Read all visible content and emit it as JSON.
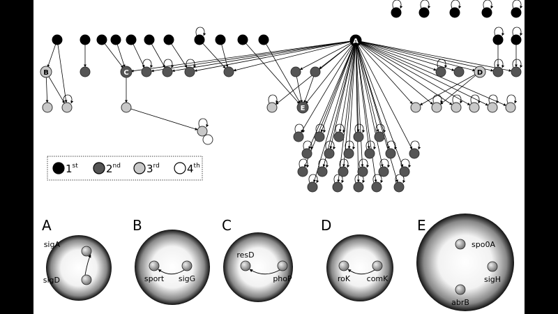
{
  "network": {
    "hub_labels": [
      "A",
      "B",
      "C",
      "D",
      "E"
    ]
  },
  "legend": {
    "items": [
      {
        "num": "1",
        "sup": "st",
        "color": "#000000"
      },
      {
        "num": "2",
        "sup": "nd",
        "color": "#555555"
      },
      {
        "num": "3",
        "sup": "rd",
        "color": "#c8c8c8"
      },
      {
        "num": "4",
        "sup": "th",
        "color": "#ffffff"
      }
    ]
  },
  "panels": [
    {
      "letter": "A",
      "genes": [
        "sigA",
        "sigD"
      ]
    },
    {
      "letter": "B",
      "genes": [
        "sport",
        "sigG"
      ]
    },
    {
      "letter": "C",
      "genes": [
        "resD",
        "phoP"
      ]
    },
    {
      "letter": "D",
      "genes": [
        "roK",
        "comK"
      ]
    },
    {
      "letter": "E",
      "genes": [
        "spo0A",
        "sigH",
        "abrB"
      ]
    }
  ]
}
